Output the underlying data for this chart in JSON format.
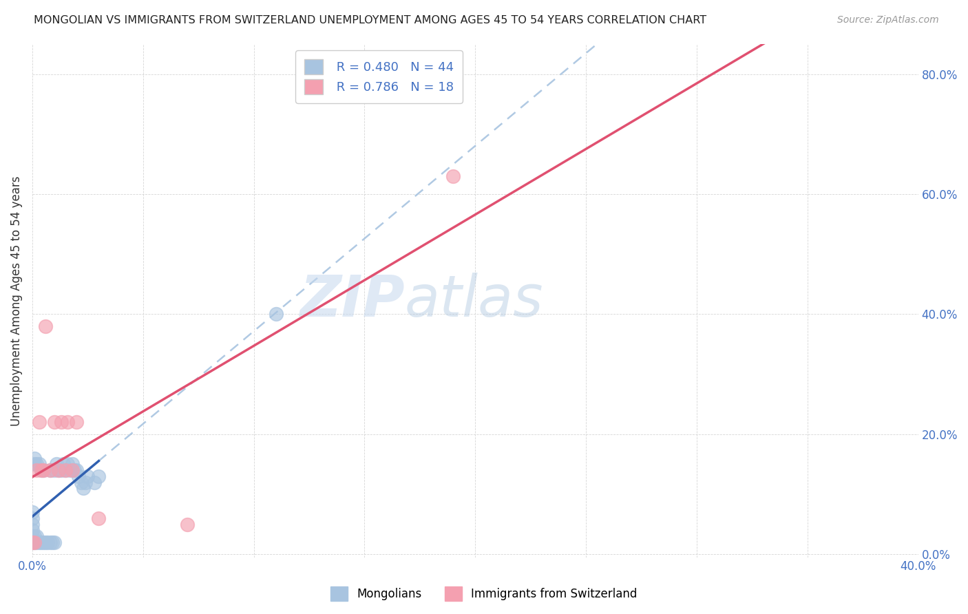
{
  "title": "MONGOLIAN VS IMMIGRANTS FROM SWITZERLAND UNEMPLOYMENT AMONG AGES 45 TO 54 YEARS CORRELATION CHART",
  "source": "Source: ZipAtlas.com",
  "ylabel": "Unemployment Among Ages 45 to 54 years",
  "xlim": [
    0.0,
    0.4
  ],
  "ylim": [
    -0.005,
    0.85
  ],
  "xticks": [
    0.0,
    0.05,
    0.1,
    0.15,
    0.2,
    0.25,
    0.3,
    0.35,
    0.4
  ],
  "yticks": [
    0.0,
    0.2,
    0.4,
    0.6,
    0.8
  ],
  "mongolian_scatter_x": [
    0.0,
    0.0,
    0.0,
    0.0,
    0.0,
    0.0,
    0.001,
    0.001,
    0.001,
    0.001,
    0.002,
    0.002,
    0.002,
    0.003,
    0.003,
    0.004,
    0.004,
    0.005,
    0.005,
    0.006,
    0.007,
    0.008,
    0.008,
    0.009,
    0.01,
    0.01,
    0.011,
    0.012,
    0.013,
    0.014,
    0.015,
    0.016,
    0.017,
    0.018,
    0.019,
    0.02,
    0.021,
    0.022,
    0.023,
    0.024,
    0.025,
    0.028,
    0.03,
    0.11
  ],
  "mongolian_scatter_y": [
    0.02,
    0.03,
    0.04,
    0.05,
    0.06,
    0.07,
    0.02,
    0.03,
    0.15,
    0.16,
    0.02,
    0.03,
    0.15,
    0.02,
    0.15,
    0.02,
    0.14,
    0.02,
    0.14,
    0.02,
    0.02,
    0.02,
    0.14,
    0.02,
    0.02,
    0.14,
    0.15,
    0.14,
    0.14,
    0.15,
    0.14,
    0.15,
    0.14,
    0.15,
    0.14,
    0.14,
    0.13,
    0.12,
    0.11,
    0.12,
    0.13,
    0.12,
    0.13,
    0.4
  ],
  "switzerland_scatter_x": [
    0.0,
    0.001,
    0.002,
    0.003,
    0.004,
    0.005,
    0.006,
    0.008,
    0.01,
    0.012,
    0.013,
    0.015,
    0.016,
    0.018,
    0.02,
    0.03,
    0.07,
    0.19
  ],
  "switzerland_scatter_y": [
    0.02,
    0.02,
    0.14,
    0.22,
    0.14,
    0.14,
    0.38,
    0.14,
    0.22,
    0.14,
    0.22,
    0.14,
    0.22,
    0.14,
    0.22,
    0.06,
    0.05,
    0.63
  ],
  "mongolian_color": "#a8c4e0",
  "switzerland_color": "#f4a0b0",
  "mongolian_line_color": "#3060b0",
  "switzerland_line_color": "#e05070",
  "mongolian_dash_color": "#a8c4e0",
  "R_mongolian": 0.48,
  "N_mongolian": 44,
  "R_switzerland": 0.786,
  "N_switzerland": 18,
  "watermark_zip": "ZIP",
  "watermark_atlas": "atlas",
  "background_color": "#ffffff"
}
